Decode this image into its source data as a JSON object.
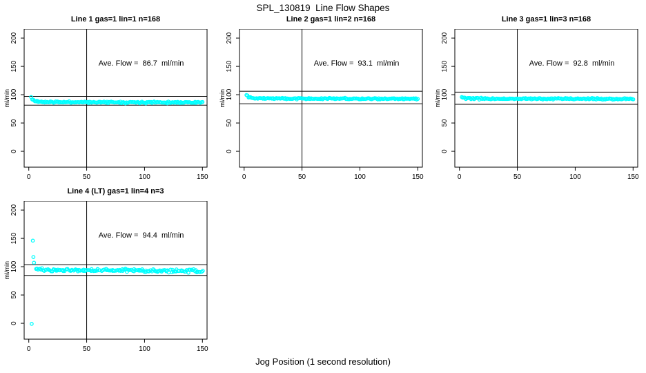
{
  "figure": {
    "title": "SPL_130819  Line Flow Shapes",
    "xlabel": "Jog Position (1 second resolution)",
    "ylabel": "ml/min",
    "background": "#FFFFFF",
    "marker_color": "#00FFFF",
    "line_color": "#000000"
  },
  "chart_data": [
    {
      "type": "scatter",
      "title": "Line 1 gas=1 lin=1 n=168",
      "annotation": "Ave. Flow =  86.7  ml/min",
      "ave_flow_ml_min": 86.7,
      "n": 168,
      "ylabel": "ml/min",
      "xticks": [
        0,
        50,
        100,
        150
      ],
      "yticks": [
        0,
        50,
        100,
        150,
        200
      ],
      "xlim": [
        -4,
        154
      ],
      "ylim": [
        -28,
        216
      ],
      "vline_x": 50,
      "hlines": [
        97,
        81.5
      ],
      "grid": false,
      "n_points": 168,
      "x_start": 2,
      "x_end": 150,
      "x_jitter": 0.15,
      "noise": 1.3,
      "seed": 11,
      "trend": [
        [
          2,
          95.5
        ],
        [
          3,
          92
        ],
        [
          5,
          89
        ],
        [
          8,
          87.8
        ],
        [
          15,
          87
        ],
        [
          40,
          86.8
        ],
        [
          150,
          86.3
        ]
      ],
      "outliers": []
    },
    {
      "type": "scatter",
      "title": "Line 2 gas=1 lin=2 n=168",
      "annotation": "Ave. Flow =  93.1  ml/min",
      "ave_flow_ml_min": 93.1,
      "n": 168,
      "ylabel": "ml/min",
      "xticks": [
        0,
        50,
        100,
        150
      ],
      "yticks": [
        0,
        50,
        100,
        150,
        200
      ],
      "xlim": [
        -4,
        154
      ],
      "ylim": [
        -28,
        216
      ],
      "vline_x": 50,
      "hlines": [
        106,
        84
      ],
      "grid": false,
      "n_points": 168,
      "x_start": 2,
      "x_end": 150,
      "x_jitter": 0.15,
      "noise": 1.2,
      "seed": 22,
      "trend": [
        [
          2,
          100.5
        ],
        [
          3,
          97.5
        ],
        [
          5,
          95.3
        ],
        [
          8,
          94.3
        ],
        [
          15,
          93.6
        ],
        [
          40,
          93.2
        ],
        [
          150,
          92.7
        ]
      ],
      "outliers": []
    },
    {
      "type": "scatter",
      "title": "Line 3 gas=1 lin=3 n=168",
      "annotation": "Ave. Flow =  92.8  ml/min",
      "ave_flow_ml_min": 92.8,
      "n": 168,
      "ylabel": "ml/min",
      "xticks": [
        0,
        50,
        100,
        150
      ],
      "yticks": [
        0,
        50,
        100,
        150,
        200
      ],
      "xlim": [
        -4,
        154
      ],
      "ylim": [
        -28,
        216
      ],
      "vline_x": 50,
      "hlines": [
        104.5,
        83
      ],
      "grid": false,
      "n_points": 168,
      "x_start": 2,
      "x_end": 150,
      "x_jitter": 0.15,
      "noise": 1.2,
      "seed": 33,
      "trend": [
        [
          2,
          96
        ],
        [
          3,
          94.5
        ],
        [
          5,
          93.6
        ],
        [
          10,
          93.1
        ],
        [
          40,
          92.9
        ],
        [
          150,
          92.5
        ]
      ],
      "outliers": []
    },
    {
      "type": "scatter",
      "title": "Line 4 (LT) gas=1 lin=4 n=3",
      "annotation": "Ave. Flow =  94.4  ml/min",
      "ave_flow_ml_min": 94.4,
      "n": 3,
      "ylabel": "ml/min",
      "xticks": [
        0,
        50,
        100,
        150
      ],
      "yticks": [
        0,
        50,
        100,
        150,
        200
      ],
      "xlim": [
        -4,
        154
      ],
      "ylim": [
        -28,
        216
      ],
      "vline_x": 50,
      "hlines": [
        103.5,
        84.5
      ],
      "grid": false,
      "n_points": 156,
      "x_start": 6,
      "x_end": 150,
      "x_jitter": 0.55,
      "noise": 2.6,
      "seed": 44,
      "trend": [
        [
          6,
          97.5
        ],
        [
          8,
          96
        ],
        [
          12,
          94.8
        ],
        [
          20,
          94.2
        ],
        [
          60,
          93.6
        ],
        [
          150,
          92.8
        ]
      ],
      "outliers": [
        [
          2.5,
          -1
        ],
        [
          3.5,
          146
        ],
        [
          4,
          117
        ],
        [
          4.5,
          107
        ]
      ]
    }
  ]
}
